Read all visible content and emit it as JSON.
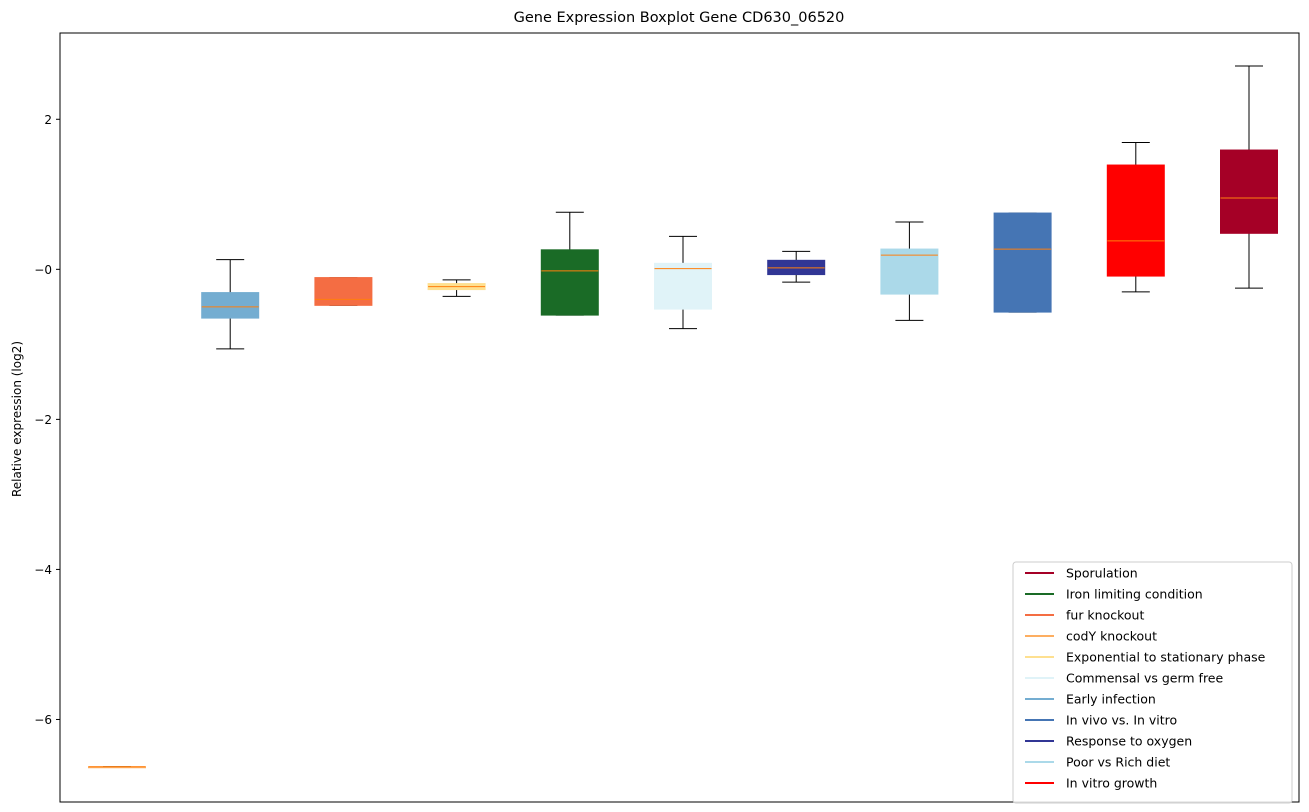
{
  "chart_data": {
    "type": "boxplot",
    "title": "Gene Expression Boxplot Gene CD630_06520",
    "xlabel": "",
    "ylabel": "Relative expression (log2)",
    "ylim": [
      -7.1,
      3.15
    ],
    "yticks": [
      2,
      0,
      -2,
      -4,
      -6
    ],
    "ytick_labels": [
      "2",
      "−0",
      "−2",
      "−4",
      "−6"
    ],
    "grid": false,
    "legend_position": "lower-right",
    "boxes": [
      {
        "color": "#fdae61",
        "whislo": -6.63,
        "q1": -6.63,
        "med": -6.63,
        "q3": -6.63,
        "whishi": -6.63
      },
      {
        "color": "#74add1",
        "whislo": -1.06,
        "q1": -0.65,
        "med": -0.5,
        "q3": -0.31,
        "whishi": 0.13
      },
      {
        "color": "#f46d43",
        "whislo": -0.48,
        "q1": -0.48,
        "med": -0.4,
        "q3": -0.11,
        "whishi": -0.11
      },
      {
        "color": "#fee090",
        "whislo": -0.36,
        "q1": -0.27,
        "med": -0.23,
        "q3": -0.19,
        "whishi": -0.14
      },
      {
        "color": "#1a6b26",
        "whislo": -0.61,
        "q1": -0.61,
        "med": -0.02,
        "q3": 0.26,
        "whishi": 0.76
      },
      {
        "color": "#e0f3f8",
        "whislo": -0.79,
        "q1": -0.53,
        "med": 0.01,
        "q3": 0.08,
        "whishi": 0.44
      },
      {
        "color": "#313695",
        "whislo": -0.17,
        "q1": -0.07,
        "med": 0.02,
        "q3": 0.12,
        "whishi": 0.24
      },
      {
        "color": "#abd9e9",
        "whislo": -0.68,
        "q1": -0.33,
        "med": 0.19,
        "q3": 0.27,
        "whishi": 0.63
      },
      {
        "color": "#4575b4",
        "whislo": -0.57,
        "q1": -0.57,
        "med": 0.27,
        "q3": 0.75,
        "whishi": 0.75
      },
      {
        "color": "#ff0000",
        "whislo": -0.3,
        "q1": -0.09,
        "med": 0.38,
        "q3": 1.39,
        "whishi": 1.69
      },
      {
        "color": "#a50026",
        "whislo": -0.25,
        "q1": 0.48,
        "med": 0.95,
        "q3": 1.59,
        "whishi": 2.71
      }
    ],
    "legend": [
      {
        "label": "Sporulation",
        "color": "#a50026"
      },
      {
        "label": "Iron limiting condition",
        "color": "#1a6b26"
      },
      {
        "label": "fur knockout",
        "color": "#f46d43"
      },
      {
        "label": "codY knockout",
        "color": "#fdae61"
      },
      {
        "label": "Exponential to stationary phase",
        "color": "#fee090"
      },
      {
        "label": "Commensal vs germ free",
        "color": "#e0f3f8"
      },
      {
        "label": "Early infection",
        "color": "#74add1"
      },
      {
        "label": "In vivo vs. In vitro",
        "color": "#4575b4"
      },
      {
        "label": "Response to oxygen",
        "color": "#313695"
      },
      {
        "label": "Poor vs Rich diet",
        "color": "#abd9e9"
      },
      {
        "label": "In vitro growth",
        "color": "#ff0000"
      }
    ],
    "median_color": "#ff7f0e"
  }
}
